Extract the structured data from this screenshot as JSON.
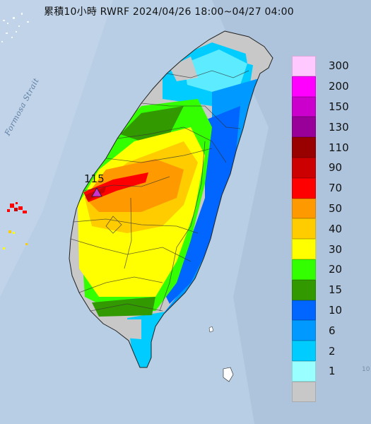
{
  "title": "累積10小時 RWRF 2024/04/26 18:00~04/27 04:00",
  "strait_label": "Formosa Strait",
  "max_station": {
    "value": "115"
  },
  "edge_tick": "10",
  "legend": {
    "items": [
      {
        "label": "300",
        "color": "#ffc8ff"
      },
      {
        "label": "200",
        "color": "#ff00ff"
      },
      {
        "label": "150",
        "color": "#cc00cc"
      },
      {
        "label": "130",
        "color": "#990099"
      },
      {
        "label": "110",
        "color": "#990000"
      },
      {
        "label": "90",
        "color": "#cc0000"
      },
      {
        "label": "70",
        "color": "#ff0000"
      },
      {
        "label": "50",
        "color": "#ff9900"
      },
      {
        "label": "40",
        "color": "#ffcc00"
      },
      {
        "label": "30",
        "color": "#ffff00"
      },
      {
        "label": "20",
        "color": "#33ff00"
      },
      {
        "label": "15",
        "color": "#339900"
      },
      {
        "label": "10",
        "color": "#0066ff"
      },
      {
        "label": "6",
        "color": "#0099ff"
      },
      {
        "label": "2",
        "color": "#00ccff"
      },
      {
        "label": "1",
        "color": "#99ffff"
      },
      {
        "label": "",
        "color": "#c8c8c8"
      }
    ]
  }
}
